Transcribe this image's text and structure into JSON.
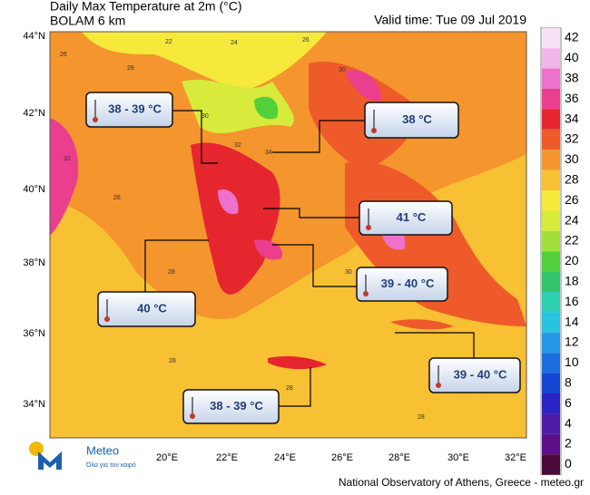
{
  "header": {
    "title": "Daily Max Temperature at 2m (°C)",
    "model": "BOLAM 6 km",
    "valid_time": "Valid time: Tue 09 Jul 2019"
  },
  "legend": {
    "levels": [
      42,
      40,
      38,
      36,
      34,
      32,
      30,
      28,
      26,
      24,
      22,
      20,
      18,
      16,
      14,
      12,
      10,
      8,
      6,
      4,
      2,
      0
    ],
    "colors": [
      "#f7e3f6",
      "#f2b5ea",
      "#ee72cb",
      "#ea3f8e",
      "#e5262f",
      "#ef5a2a",
      "#f4952e",
      "#f8c033",
      "#f6e93c",
      "#d8ea3b",
      "#a2df3a",
      "#52d03c",
      "#33c56c",
      "#2fcfb3",
      "#28c3df",
      "#2298e5",
      "#1b6ee0",
      "#1446d4",
      "#2b22c6",
      "#4c1aa6",
      "#5c0f88",
      "#4a0a3a"
    ]
  },
  "axes": {
    "lat_labels": [
      "44°N",
      "42°N",
      "40°N",
      "38°N",
      "36°N",
      "34°N"
    ],
    "lon_labels": [
      "20°E",
      "22°E",
      "24°E",
      "26°E",
      "28°E",
      "30°E",
      "32°E"
    ]
  },
  "callouts": [
    "38 - 39 °C",
    "38 °C",
    "41 °C",
    "39 - 40 °C",
    "40 °C",
    "39 - 40 °C",
    "38 - 39 °C"
  ],
  "map_labels": [
    "26",
    "22",
    "24",
    "26",
    "30",
    "28",
    "32",
    "28",
    "30",
    "32",
    "34",
    "28",
    "30",
    "28",
    "28",
    "28"
  ],
  "logo": {
    "name": "Meteo",
    "tagline": "Όλα για τον καιρό"
  },
  "footer": "National Observatory of Athens, Greece - meteo.gr"
}
